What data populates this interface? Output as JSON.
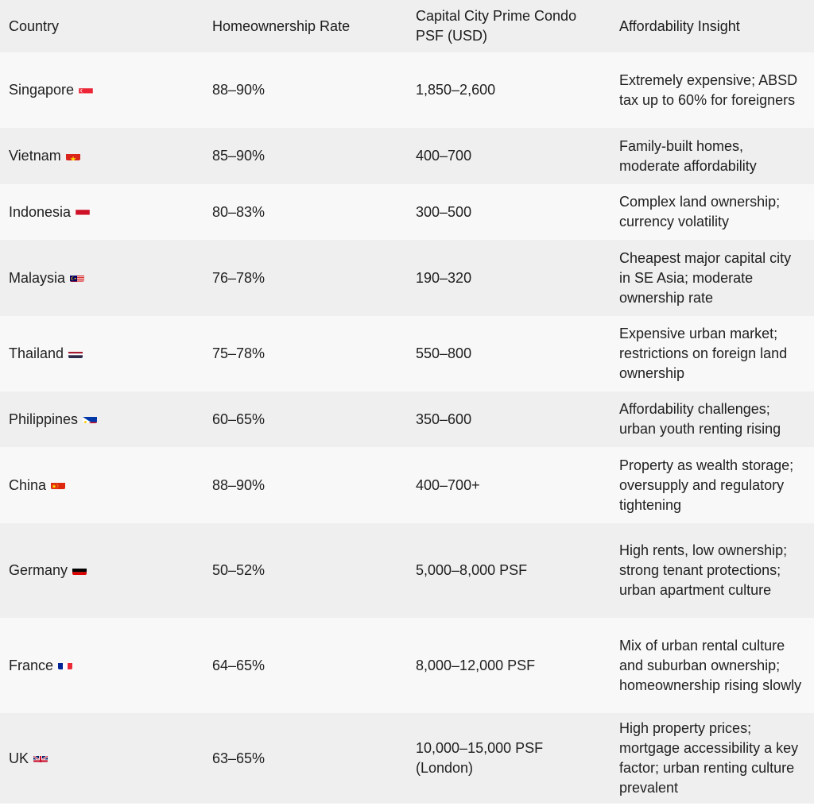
{
  "table": {
    "headers": [
      "Country",
      "Homeownership Rate",
      "Capital City Prime Condo PSF (USD)",
      "Affordability Insight"
    ],
    "rows": [
      {
        "country": "Singapore",
        "flag": "singapore-flag",
        "rate": "88–90%",
        "psf": "1,850–2,600",
        "insight": "Extremely expensive; ABSD tax up to 60% for foreigners"
      },
      {
        "country": "Vietnam",
        "flag": "vietnam-flag",
        "rate": "85–90%",
        "psf": "400–700",
        "insight": "Family-built homes, moderate affordability"
      },
      {
        "country": "Indonesia",
        "flag": "indonesia-flag",
        "rate": "80–83%",
        "psf": "300–500",
        "insight": "Complex land ownership; currency volatility"
      },
      {
        "country": "Malaysia",
        "flag": "malaysia-flag",
        "rate": "76–78%",
        "psf": "190–320",
        "insight": "Cheapest major capital city in SE Asia; moderate ownership rate"
      },
      {
        "country": "Thailand",
        "flag": "thailand-flag",
        "rate": "75–78%",
        "psf": "550–800",
        "insight": "Expensive urban market; restrictions on foreign land ownership"
      },
      {
        "country": "Philippines",
        "flag": "philippines-flag",
        "rate": "60–65%",
        "psf": "350–600",
        "insight": "Affordability challenges; urban youth renting rising"
      },
      {
        "country": "China",
        "flag": "china-flag",
        "rate": "88–90%",
        "psf": "400–700+",
        "insight": "Property as wealth storage; oversupply and regulatory tightening"
      },
      {
        "country": "Germany",
        "flag": "germany-flag",
        "rate": "50–52%",
        "psf": "5,000–8,000 PSF",
        "insight": "High rents, low ownership; strong tenant protections; urban apartment culture"
      },
      {
        "country": "France",
        "flag": "france-flag",
        "rate": "64–65%",
        "psf": "8,000–12,000 PSF",
        "insight": "Mix of urban rental culture and suburban ownership; homeownership rising slowly"
      },
      {
        "country": "UK",
        "flag": "uk-flag",
        "rate": "63–65%",
        "psf": "10,000–15,000 PSF (London)",
        "insight": "High property prices; mortgage accessibility a key factor; urban renting culture prevalent"
      }
    ]
  }
}
